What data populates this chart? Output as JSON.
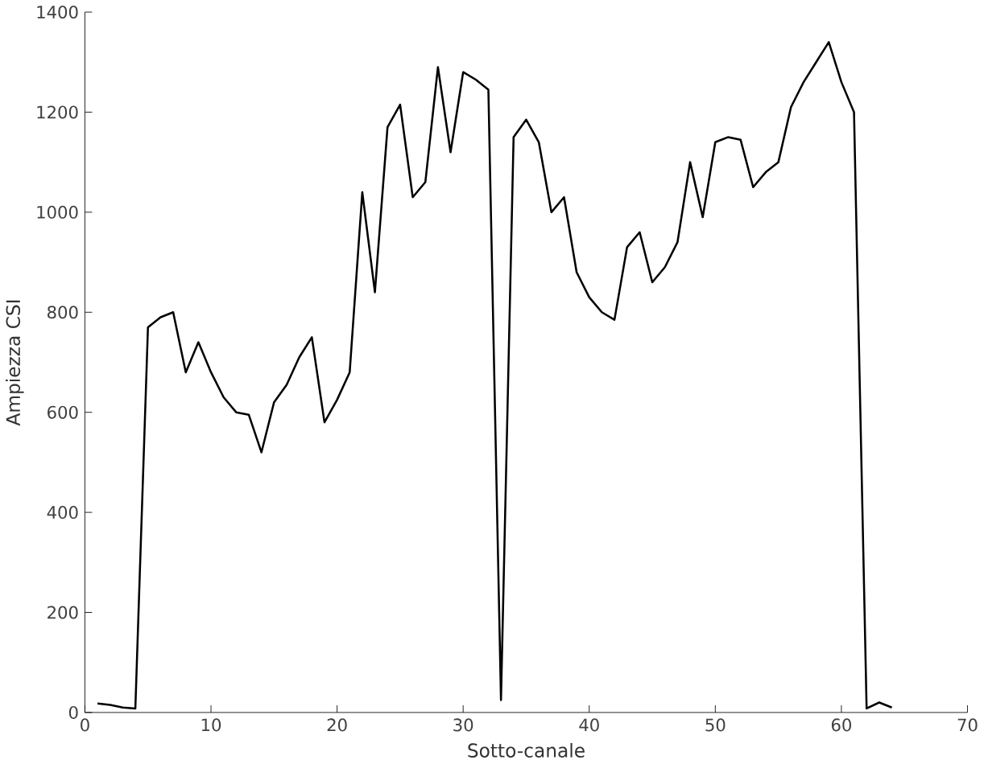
{
  "chart_data": {
    "type": "line",
    "xlabel": "Sotto-canale",
    "ylabel": "Ampiezza CSI",
    "x": [
      1,
      2,
      3,
      4,
      5,
      6,
      7,
      8,
      9,
      10,
      11,
      12,
      13,
      14,
      15,
      16,
      17,
      18,
      19,
      20,
      21,
      22,
      23,
      24,
      25,
      26,
      27,
      28,
      29,
      30,
      31,
      32,
      33,
      34,
      35,
      36,
      37,
      38,
      39,
      40,
      41,
      42,
      43,
      44,
      45,
      46,
      47,
      48,
      49,
      50,
      51,
      52,
      53,
      54,
      55,
      56,
      57,
      58,
      59,
      60,
      61,
      62,
      63,
      64
    ],
    "series": [
      {
        "color": "#000000",
        "values": [
          18,
          15,
          10,
          8,
          770,
          790,
          800,
          680,
          740,
          680,
          630,
          600,
          595,
          520,
          620,
          655,
          710,
          750,
          580,
          625,
          680,
          1040,
          840,
          1170,
          1215,
          1030,
          1060,
          1290,
          1120,
          1280,
          1265,
          1245,
          25,
          1150,
          1185,
          1140,
          1000,
          1030,
          880,
          830,
          800,
          785,
          930,
          960,
          860,
          890,
          940,
          1100,
          990,
          1140,
          1150,
          1145,
          1050,
          1080,
          1100,
          1210,
          1260,
          1300,
          1340,
          1260,
          1200,
          8,
          20,
          10
        ]
      }
    ],
    "xlim": [
      0,
      70
    ],
    "ylim": [
      0,
      1400
    ],
    "xticks": [
      0,
      10,
      20,
      30,
      40,
      50,
      60,
      70
    ],
    "yticks": [
      0,
      200,
      400,
      600,
      800,
      1000,
      1200,
      1400
    ],
    "marker": "none",
    "line_style": "solid"
  }
}
